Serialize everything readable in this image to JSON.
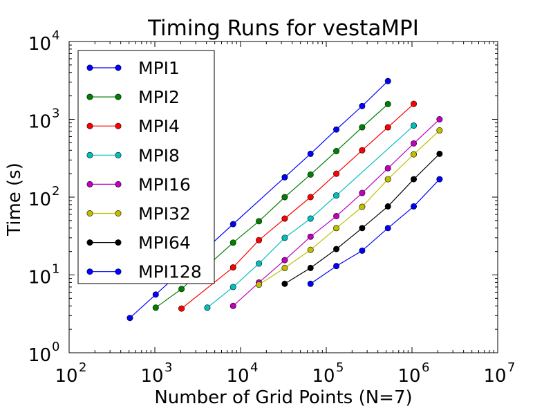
{
  "chart_data": {
    "type": "line",
    "title": "Timing Runs for vestaMPI",
    "xlabel": "Number of Grid Points (N=7)",
    "ylabel": "Time (s)",
    "x_scale": "log",
    "y_scale": "log",
    "xlim": [
      100,
      10000000
    ],
    "ylim": [
      1,
      10000
    ],
    "x_ticks": [
      {
        "base": "10",
        "exp": "2"
      },
      {
        "base": "10",
        "exp": "3"
      },
      {
        "base": "10",
        "exp": "4"
      },
      {
        "base": "10",
        "exp": "5"
      },
      {
        "base": "10",
        "exp": "6"
      },
      {
        "base": "10",
        "exp": "7"
      }
    ],
    "y_ticks": [
      {
        "base": "10",
        "exp": "0"
      },
      {
        "base": "10",
        "exp": "1"
      },
      {
        "base": "10",
        "exp": "2"
      },
      {
        "base": "10",
        "exp": "3"
      },
      {
        "base": "10",
        "exp": "4"
      }
    ],
    "grid": false,
    "legend_position": "upper-left",
    "series": [
      {
        "name": "MPI1",
        "color": "#0000ff",
        "x": [
          512,
          1024,
          8192,
          32768,
          65536,
          131072,
          262144,
          524288
        ],
        "y": [
          2.8,
          5.6,
          45,
          180,
          360,
          740,
          1480,
          3100
        ]
      },
      {
        "name": "MPI2",
        "color": "#008000",
        "x": [
          1024,
          2048,
          8192,
          16384,
          32768,
          65536,
          131072,
          262144,
          524288
        ],
        "y": [
          3.8,
          6.6,
          26,
          49,
          100,
          195,
          390,
          790,
          1570
        ]
      },
      {
        "name": "MPI4",
        "color": "#ff0000",
        "x": [
          2048,
          8192,
          16384,
          32768,
          65536,
          131072,
          262144,
          524288,
          1048576
        ],
        "y": [
          3.7,
          12.5,
          28,
          53,
          100,
          200,
          400,
          790,
          1580
        ]
      },
      {
        "name": "MPI8",
        "color": "#00bfbf",
        "x": [
          4096,
          8192,
          16384,
          32768,
          65536,
          131072,
          1048576
        ],
        "y": [
          3.8,
          7,
          14,
          30,
          53,
          105,
          830
        ]
      },
      {
        "name": "MPI16",
        "color": "#bf00bf",
        "x": [
          8192,
          16384,
          32768,
          65536,
          131072,
          262144,
          524288,
          1048576,
          2097152
        ],
        "y": [
          4,
          8,
          15.5,
          31,
          57,
          113,
          235,
          490,
          1000
        ]
      },
      {
        "name": "MPI32",
        "color": "#bfbf00",
        "x": [
          16384,
          32768,
          65536,
          131072,
          262144,
          524288,
          1048576,
          2097152
        ],
        "y": [
          7.5,
          12.3,
          21,
          40,
          75,
          170,
          355,
          720
        ]
      },
      {
        "name": "MPI64",
        "color": "#000000",
        "x": [
          32768,
          65536,
          131072,
          262144,
          524288,
          1048576,
          2097152
        ],
        "y": [
          7.7,
          12.3,
          21.5,
          40,
          76,
          170,
          360
        ]
      },
      {
        "name": "MPI128",
        "color": "#0000ff",
        "x": [
          65536,
          131072,
          262144,
          524288,
          1048576,
          2097152
        ],
        "y": [
          7.7,
          13,
          20.5,
          40,
          76,
          170
        ]
      }
    ]
  }
}
